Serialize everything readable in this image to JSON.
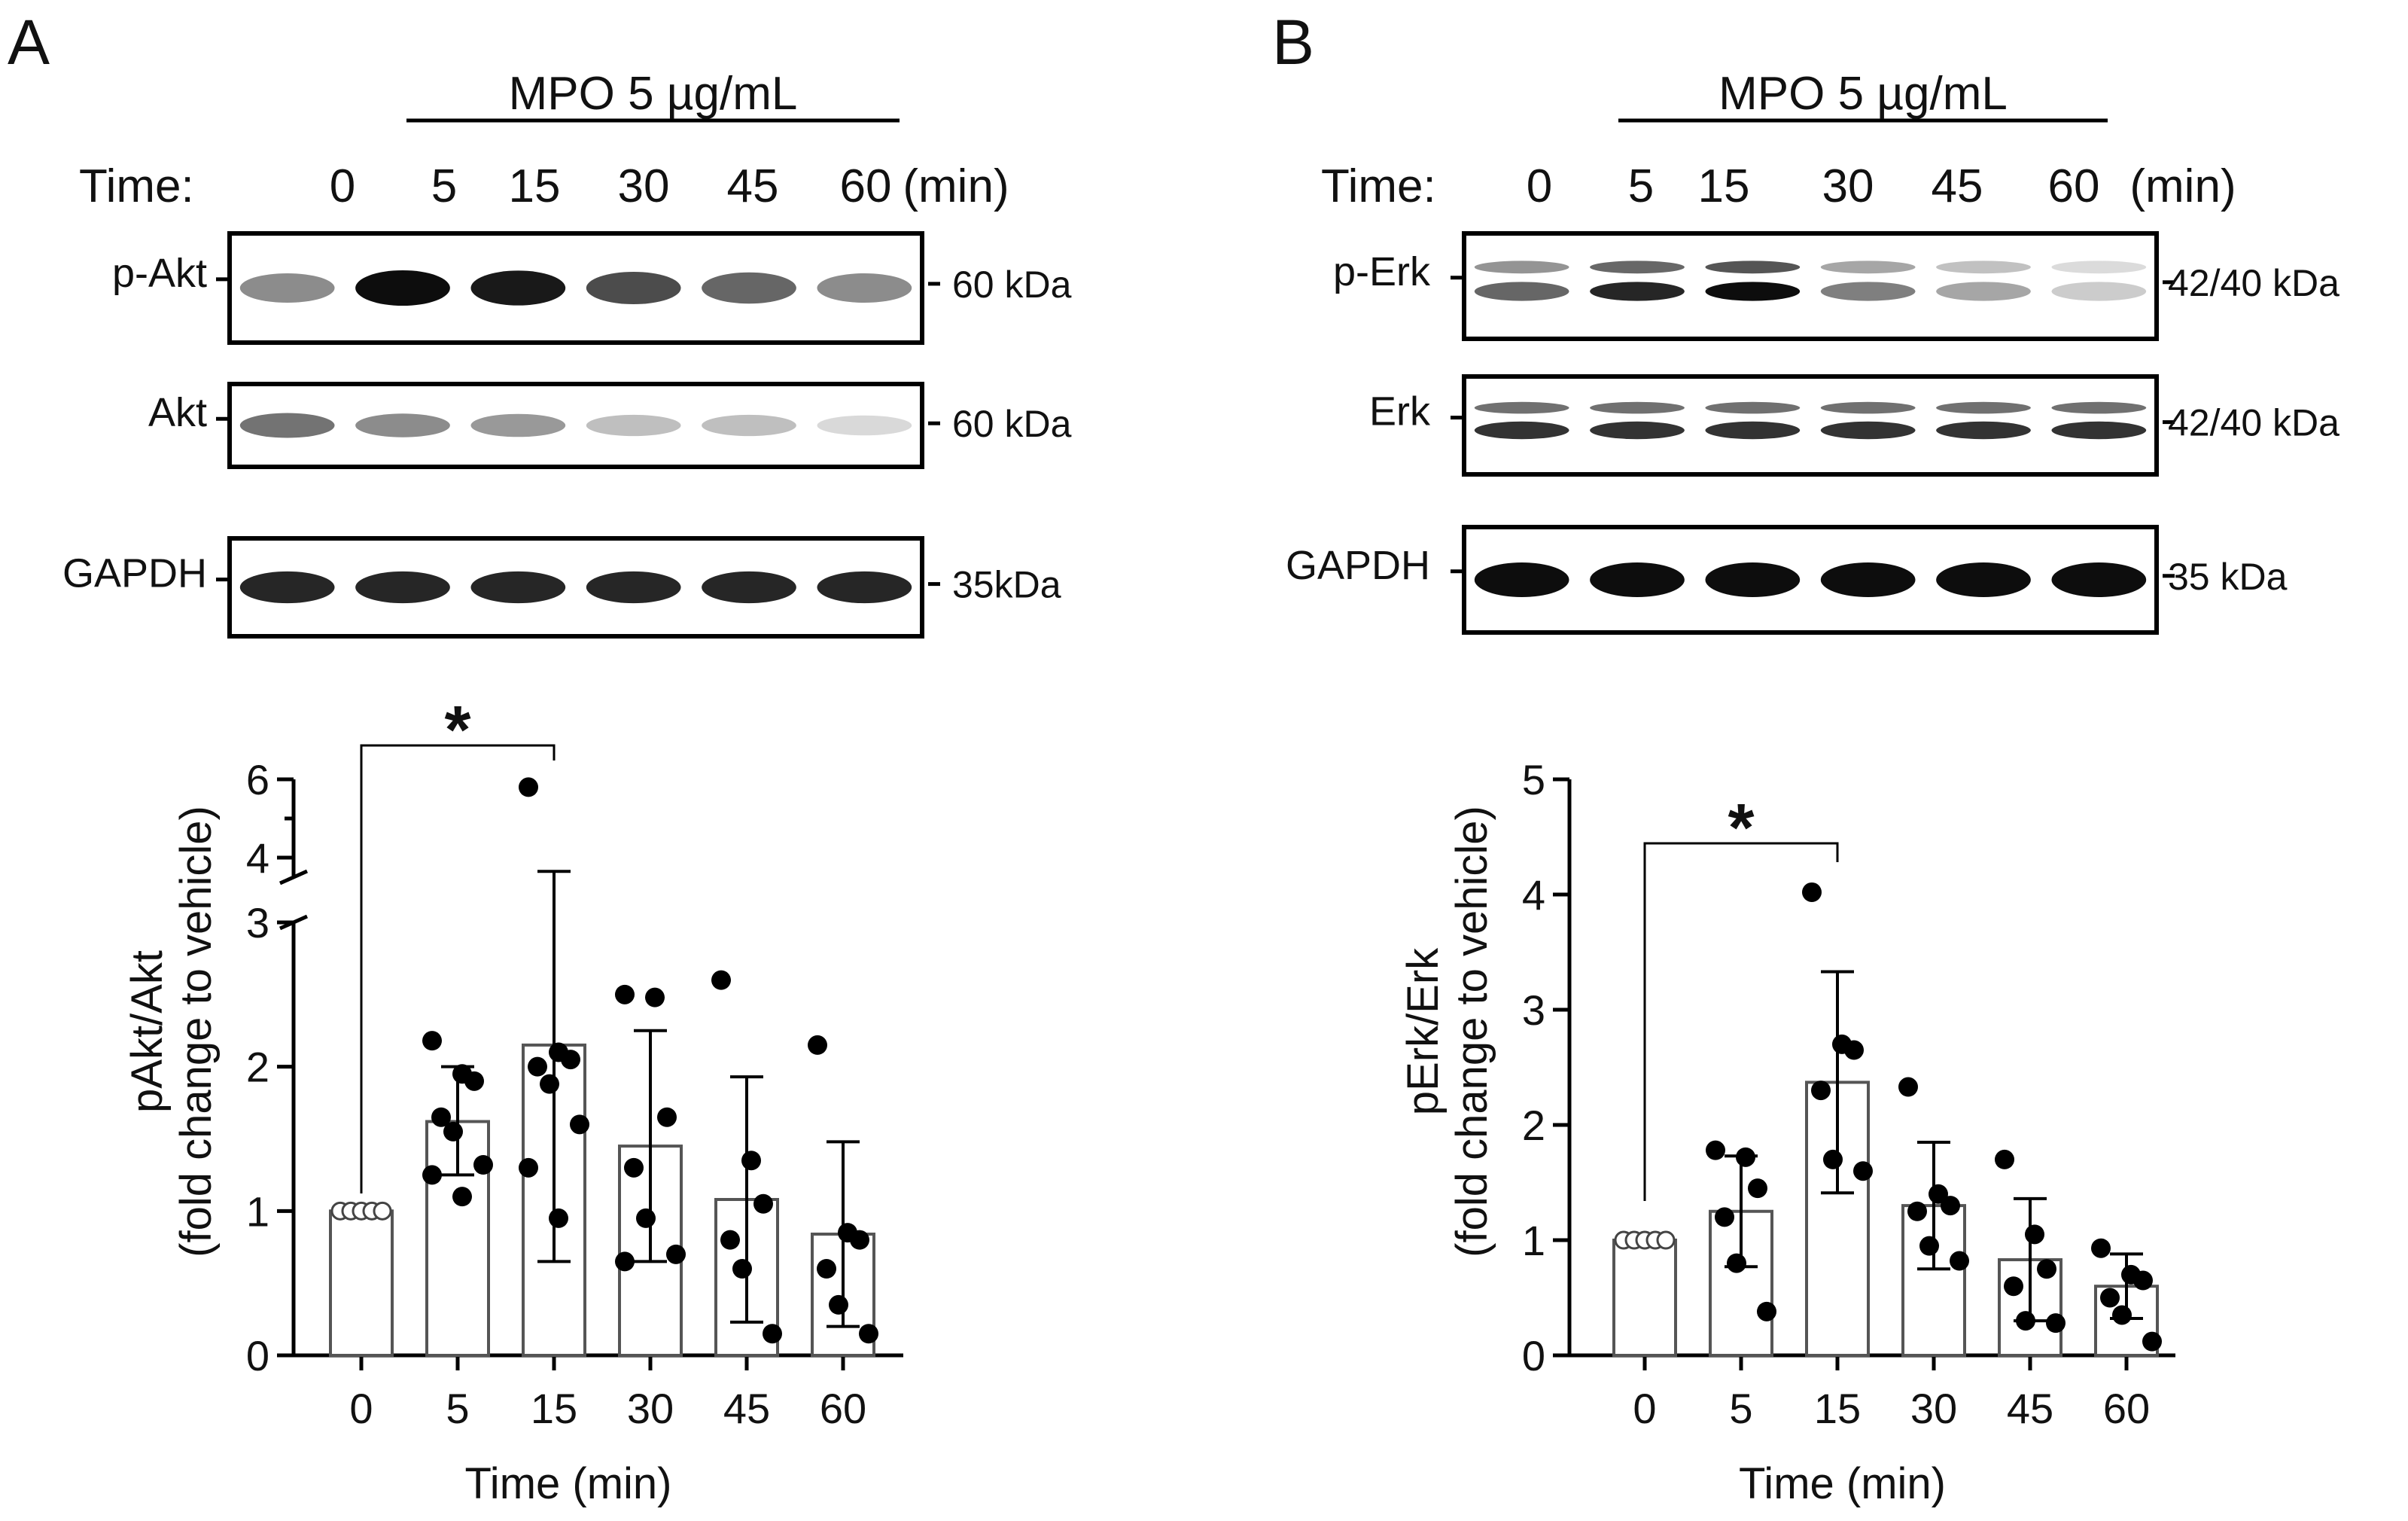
{
  "chart_data": [
    {
      "panel": "A",
      "type": "bar",
      "treatment_label": "MPO 5 µg/mL",
      "time_label": "Time:",
      "time_unit": "(min)",
      "blot_lanes": [
        "0",
        "5",
        "15",
        "30",
        "45",
        "60"
      ],
      "blots": [
        {
          "label": "p-Akt",
          "kda": "60 kDa",
          "intensity": [
            0.45,
            0.95,
            0.9,
            0.7,
            0.6,
            0.45
          ],
          "bands": 1
        },
        {
          "label": "Akt",
          "kda": "60 kDa",
          "intensity": [
            0.55,
            0.45,
            0.4,
            0.25,
            0.25,
            0.15
          ],
          "bands": 1
        },
        {
          "label": "GAPDH",
          "kda": "35kDa",
          "intensity": [
            0.85,
            0.85,
            0.85,
            0.85,
            0.85,
            0.85
          ],
          "bands": 1
        }
      ],
      "categories": [
        "0",
        "5",
        "15",
        "30",
        "45",
        "60"
      ],
      "values": [
        1.0,
        1.62,
        2.15,
        1.45,
        1.08,
        0.84
      ],
      "errors_upper": [
        1.0,
        2.0,
        3.65,
        2.25,
        1.93,
        1.48
      ],
      "errors_lower": [
        1.0,
        1.25,
        0.65,
        0.65,
        0.23,
        0.2
      ],
      "points": [
        [
          1,
          1,
          1,
          1,
          1
        ],
        [
          2.18,
          1.95,
          1.9,
          1.65,
          1.55,
          1.32,
          1.25,
          1.1
        ],
        [
          5.8,
          2.1,
          2.05,
          2.0,
          1.88,
          1.6,
          1.3,
          0.95
        ],
        [
          2.5,
          2.48,
          1.65,
          1.3,
          0.95,
          0.7,
          0.65
        ],
        [
          2.6,
          1.35,
          1.05,
          0.8,
          0.6,
          0.15
        ],
        [
          2.15,
          0.85,
          0.8,
          0.6,
          0.35,
          0.15
        ]
      ],
      "open_first": true,
      "xlabel": "Time (min)",
      "ylabel": "pAkt/Akt",
      "ylabel2": "(fold change to vehicle)",
      "ylim": [
        0,
        6
      ],
      "axis_break": [
        3,
        3.5
      ],
      "yticks": [
        "0",
        "1",
        "2",
        "3",
        "4",
        "6"
      ],
      "significance": {
        "from": "0",
        "to": "15",
        "label": "*"
      }
    },
    {
      "panel": "B",
      "type": "bar",
      "treatment_label": "MPO 5 µg/mL",
      "time_label": "Time:",
      "time_unit": "(min)",
      "blot_lanes": [
        "0",
        "5",
        "15",
        "30",
        "45",
        "60"
      ],
      "blots": [
        {
          "label": "p-Erk",
          "kda": "42/40 kDa",
          "intensity": [
            0.6,
            0.85,
            0.95,
            0.5,
            0.35,
            0.2
          ],
          "bands": 2
        },
        {
          "label": "Erk",
          "kda": "42/40 kDa",
          "intensity": [
            0.8,
            0.8,
            0.8,
            0.8,
            0.8,
            0.8
          ],
          "bands": 2
        },
        {
          "label": "GAPDH",
          "kda": "35 kDa",
          "intensity": [
            0.95,
            0.95,
            0.95,
            0.95,
            0.95,
            0.95
          ],
          "bands": 1
        }
      ],
      "categories": [
        "0",
        "5",
        "15",
        "30",
        "45",
        "60"
      ],
      "values": [
        1.0,
        1.25,
        2.37,
        1.3,
        0.83,
        0.6
      ],
      "errors_upper": [
        1.0,
        1.73,
        3.33,
        1.85,
        1.36,
        0.88
      ],
      "errors_lower": [
        1.0,
        0.77,
        1.41,
        0.75,
        0.3,
        0.32
      ],
      "points": [
        [
          1,
          1,
          1,
          1,
          1
        ],
        [
          1.78,
          1.72,
          1.45,
          1.2,
          0.8,
          0.38
        ],
        [
          4.02,
          2.7,
          2.65,
          2.3,
          1.7,
          1.6
        ],
        [
          2.33,
          1.4,
          1.3,
          1.25,
          0.95,
          0.82
        ],
        [
          1.7,
          1.05,
          0.75,
          0.6,
          0.3,
          0.28
        ],
        [
          0.93,
          0.7,
          0.65,
          0.5,
          0.35,
          0.12
        ]
      ],
      "open_first": true,
      "xlabel": "Time (min)",
      "ylabel": "pErk/Erk",
      "ylabel2": "(fold change to vehicle)",
      "ylim": [
        0,
        5
      ],
      "yticks": [
        "0",
        "1",
        "2",
        "3",
        "4",
        "5"
      ],
      "significance": {
        "from": "0",
        "to": "15",
        "label": "*"
      }
    }
  ]
}
